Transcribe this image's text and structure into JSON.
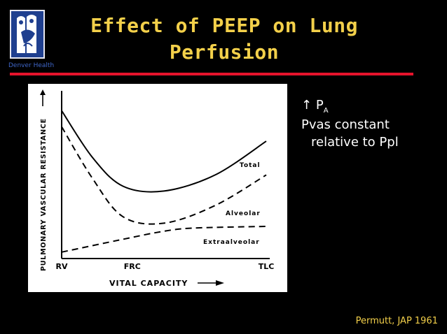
{
  "logo": {
    "caption": "Denver Health"
  },
  "slide": {
    "title_line1": "Effect of PEEP on Lung",
    "title_line2": "Perfusion",
    "accent_color": "#f3d04a",
    "rule_color": "#e5132c"
  },
  "bullets": {
    "b1_arrow": "↑",
    "b1_main": "P",
    "b1_sub": "A",
    "b2_line1": "Pvas constant",
    "b2_line2": "relative to Ppl"
  },
  "citation": "Permutt, JAP 1961",
  "chart_data": {
    "type": "line",
    "xlabel": "VITAL CAPACITY",
    "ylabel": "PULMONARY VASCULAR RESISTANCE",
    "x_ticks": [
      "RV",
      "FRC",
      "TLC"
    ],
    "series": [
      {
        "name": "Total",
        "style": "solid",
        "values": [
          [
            0,
            0.92
          ],
          [
            0.15,
            0.63
          ],
          [
            0.3,
            0.45
          ],
          [
            0.5,
            0.42
          ],
          [
            0.75,
            0.52
          ],
          [
            1.0,
            0.73
          ]
        ]
      },
      {
        "name": "Alveolar",
        "style": "dashed",
        "values": [
          [
            0,
            0.82
          ],
          [
            0.15,
            0.5
          ],
          [
            0.3,
            0.26
          ],
          [
            0.5,
            0.22
          ],
          [
            0.75,
            0.33
          ],
          [
            1.0,
            0.52
          ]
        ]
      },
      {
        "name": "Extraalveolar",
        "style": "dashed",
        "values": [
          [
            0,
            0.04
          ],
          [
            0.3,
            0.12
          ],
          [
            0.5,
            0.17
          ],
          [
            0.65,
            0.19
          ],
          [
            1.0,
            0.2
          ]
        ]
      }
    ]
  }
}
